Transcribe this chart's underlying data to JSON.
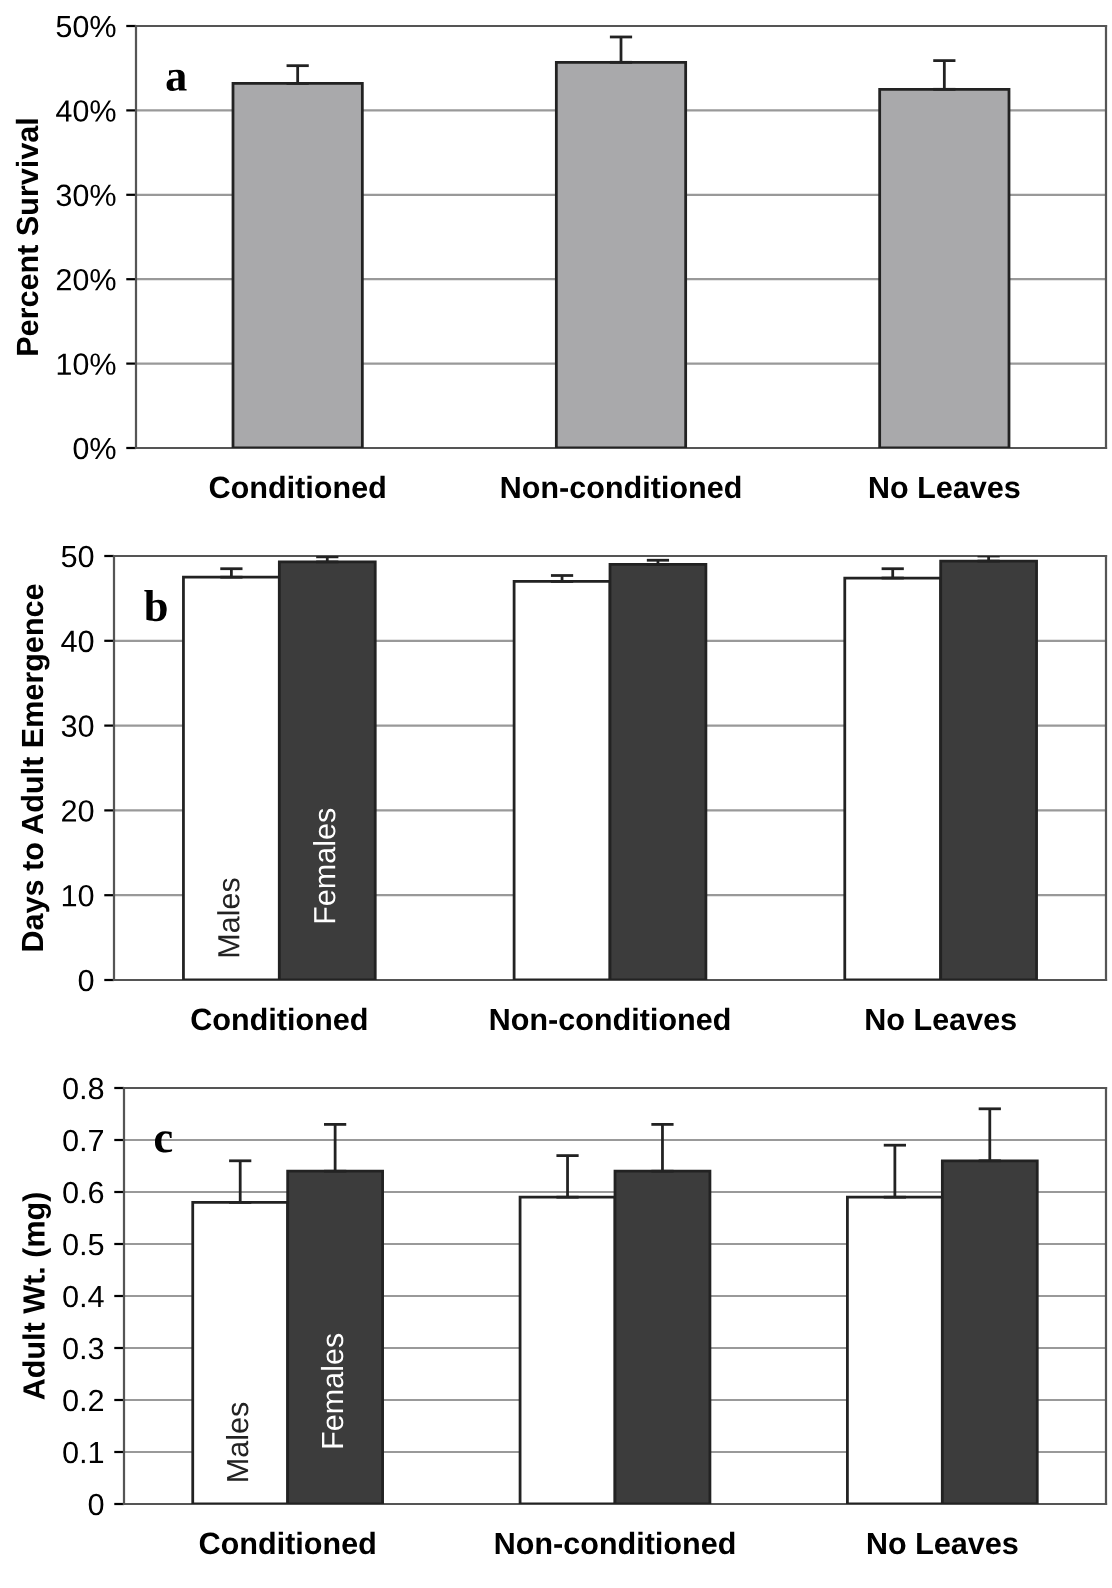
{
  "chart_data": [
    {
      "type": "bar",
      "ylabel": "Percent Survival",
      "categories": [
        "Conditioned",
        "Non-conditioned",
        "No Leaves"
      ],
      "series": [
        {
          "color": "#a9a9ab",
          "values": [
            43.2,
            45.7,
            42.5
          ],
          "errors": [
            [
              43.2,
              45.3
            ],
            [
              45.7,
              48.7
            ],
            [
              42.5,
              45.9
            ]
          ]
        }
      ],
      "ylim": [
        0,
        50
      ],
      "yticks": [
        {
          "value": 0,
          "label": "0%"
        },
        {
          "value": 10,
          "label": "10%"
        },
        {
          "value": 20,
          "label": "20%"
        },
        {
          "value": 30,
          "label": "30%"
        },
        {
          "value": 40,
          "label": "40%"
        },
        {
          "value": 50,
          "label": "50%"
        }
      ],
      "grid": "y",
      "annotations": [
        "a"
      ]
    },
    {
      "type": "bar",
      "ylabel": "Days to Adult Emergence",
      "categories": [
        "Conditioned",
        "Non-conditioned",
        "No Leaves"
      ],
      "series": [
        {
          "name": "Males",
          "color": "#ffffff",
          "values": [
            47.5,
            47.0,
            47.4
          ],
          "errors": [
            [
              47.5,
              48.5
            ],
            [
              47.0,
              47.7
            ],
            [
              47.4,
              48.5
            ]
          ]
        },
        {
          "name": "Females",
          "color": "#3c3c3c",
          "values": [
            49.3,
            49.0,
            49.4
          ],
          "errors": [
            [
              49.3,
              49.9
            ],
            [
              49.0,
              49.5
            ],
            [
              49.4,
              50.0
            ]
          ]
        }
      ],
      "ylim": [
        0,
        50
      ],
      "yticks": [
        0,
        10,
        20,
        30,
        40,
        50
      ],
      "grid": "y",
      "annotations": [
        "b"
      ]
    },
    {
      "type": "bar",
      "ylabel": "Adult Wt. (mg)",
      "categories": [
        "Conditioned",
        "Non-conditioned",
        "No Leaves"
      ],
      "series": [
        {
          "name": "Males",
          "color": "#ffffff",
          "values": [
            0.58,
            0.59,
            0.59
          ],
          "errors": [
            [
              0.58,
              0.66
            ],
            [
              0.59,
              0.67
            ],
            [
              0.59,
              0.69
            ]
          ]
        },
        {
          "name": "Females",
          "color": "#3c3c3c",
          "values": [
            0.64,
            0.64,
            0.66
          ],
          "errors": [
            [
              0.64,
              0.73
            ],
            [
              0.64,
              0.73
            ],
            [
              0.66,
              0.76
            ]
          ]
        }
      ],
      "ylim": [
        0,
        0.8
      ],
      "yticks": [
        0,
        0.1,
        0.2,
        0.3,
        0.4,
        0.5,
        0.6,
        0.7,
        0.8
      ],
      "grid": "y",
      "annotations": [
        "c"
      ]
    }
  ]
}
